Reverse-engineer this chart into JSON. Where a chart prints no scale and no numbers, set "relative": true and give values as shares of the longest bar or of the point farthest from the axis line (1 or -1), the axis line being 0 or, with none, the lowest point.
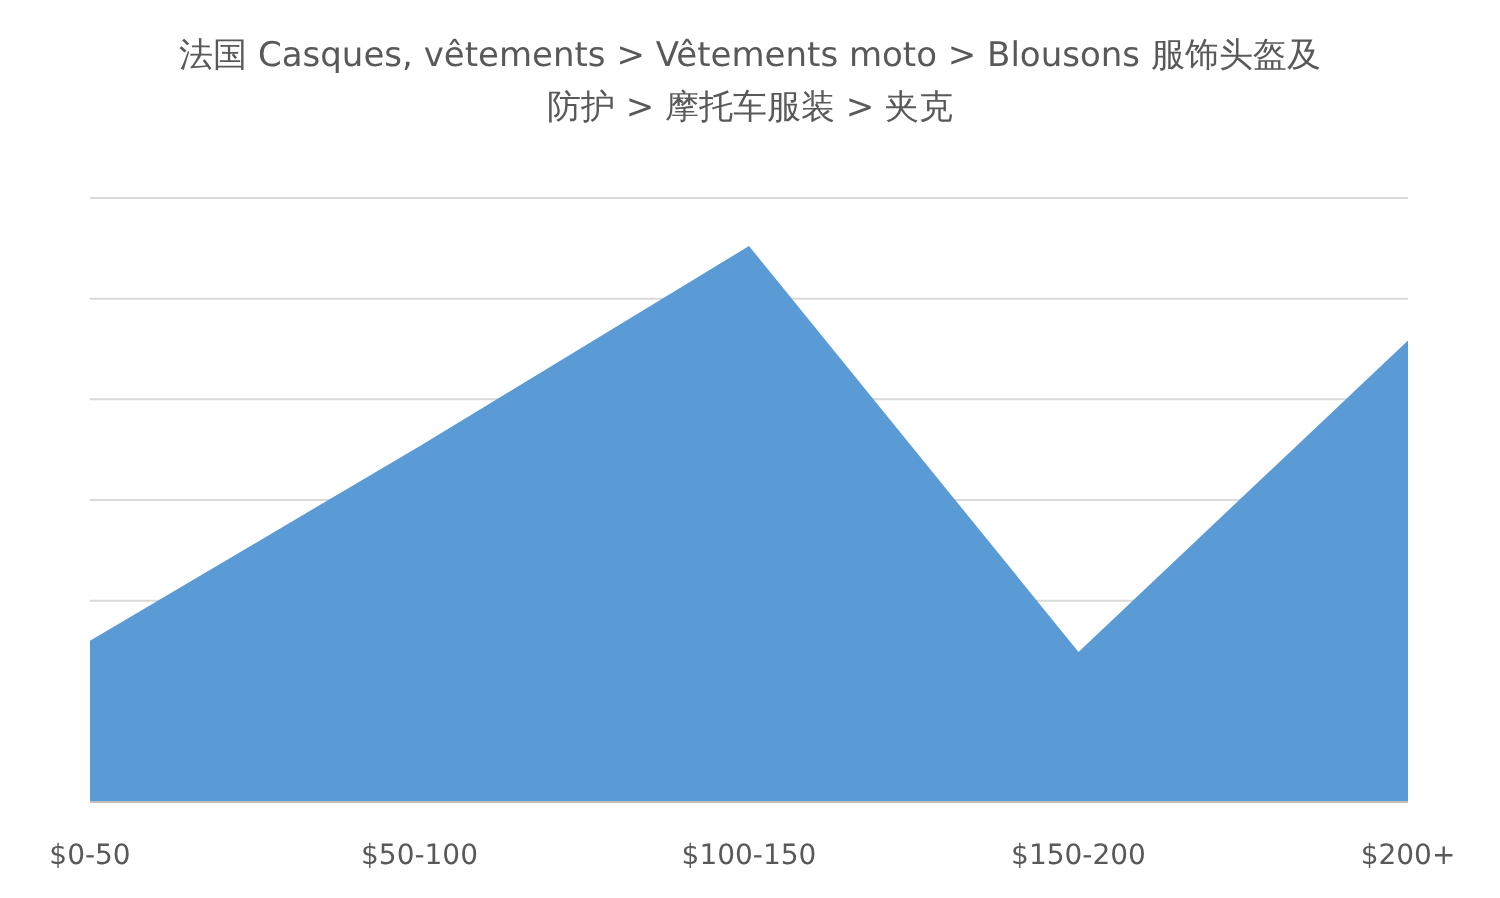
{
  "chart_data": {
    "type": "area",
    "title": "法国  Casques, vêtements > Vêtements moto > Blousons 服饰头盔及防护 > 摩托车服装 > 夹克",
    "categories": [
      "$0-50",
      "$50-100",
      "$100-150",
      "$150-200",
      "$200+"
    ],
    "relative": true,
    "grid": "y",
    "series": [
      {
        "color": "#5b9bd5",
        "values": [
          0.29,
          0.64,
          1,
          0.27,
          0.83
        ]
      }
    ]
  }
}
